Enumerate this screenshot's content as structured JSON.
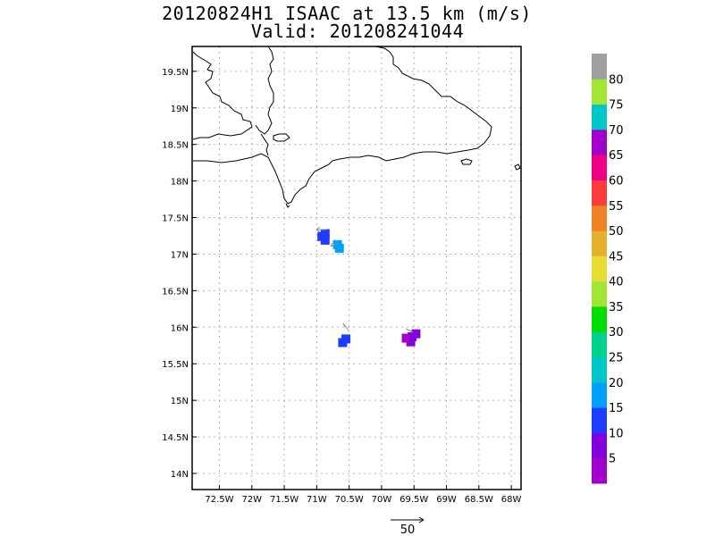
{
  "title": {
    "line1": "20120824H1 ISAAC at 13.5 km (m/s)",
    "line2": "Valid: 201208241044"
  },
  "axes": {
    "lon_ticks": [
      "72.5W",
      "72W",
      "71.5W",
      "71W",
      "70.5W",
      "70W",
      "69.5W",
      "69W",
      "68.5W",
      "68W"
    ],
    "lon_values": [
      -72.5,
      -72,
      -71.5,
      -71,
      -70.5,
      -70,
      -69.5,
      -69,
      -68.5,
      -68
    ],
    "lat_ticks": [
      "19.5N",
      "19N",
      "18.5N",
      "18N",
      "17.5N",
      "17N",
      "16.5N",
      "16N",
      "15.5N",
      "15N",
      "14.5N",
      "14N"
    ],
    "lat_values": [
      19.5,
      19,
      18.5,
      18,
      17.5,
      17,
      16.5,
      16,
      15.5,
      15,
      14.5,
      14
    ],
    "lon_range": [
      -72.92,
      -67.85
    ],
    "lat_range": [
      13.78,
      19.84
    ],
    "grid": true
  },
  "colorbar": {
    "labels": [
      "5",
      "10",
      "15",
      "20",
      "25",
      "30",
      "35",
      "40",
      "45",
      "50",
      "55",
      "60",
      "65",
      "70",
      "75",
      "80"
    ],
    "colors": [
      "#a000c8",
      "#8200dc",
      "#1e3cff",
      "#00a0ff",
      "#00c8c8",
      "#00d28c",
      "#00dc00",
      "#a0e632",
      "#e6dc32",
      "#e6af2d",
      "#f08228",
      "#fa3c3c",
      "#f00082",
      "#a000c8",
      "#00c8c8",
      "#a0e632",
      "#a0a0a0"
    ]
  },
  "wind_vector_key": {
    "label": "50"
  },
  "wind_patches": [
    {
      "lon": -70.87,
      "lat": 17.28,
      "color": "#1e3cff"
    },
    {
      "lon": -70.87,
      "lat": 17.19,
      "color": "#1e3cff"
    },
    {
      "lon": -70.92,
      "lat": 17.24,
      "color": "#1e3cff"
    },
    {
      "lon": -70.68,
      "lat": 17.13,
      "color": "#00a0ff"
    },
    {
      "lon": -70.65,
      "lat": 17.08,
      "color": "#00a0ff"
    },
    {
      "lon": -70.55,
      "lat": 15.84,
      "color": "#1e3cff"
    },
    {
      "lon": -70.6,
      "lat": 15.79,
      "color": "#1e3cff"
    },
    {
      "lon": -69.47,
      "lat": 15.91,
      "color": "#8200dc"
    },
    {
      "lon": -69.53,
      "lat": 15.87,
      "color": "#8200dc"
    },
    {
      "lon": -69.55,
      "lat": 15.8,
      "color": "#8200dc"
    },
    {
      "lon": -69.62,
      "lat": 15.85,
      "color": "#a000c8"
    }
  ]
}
